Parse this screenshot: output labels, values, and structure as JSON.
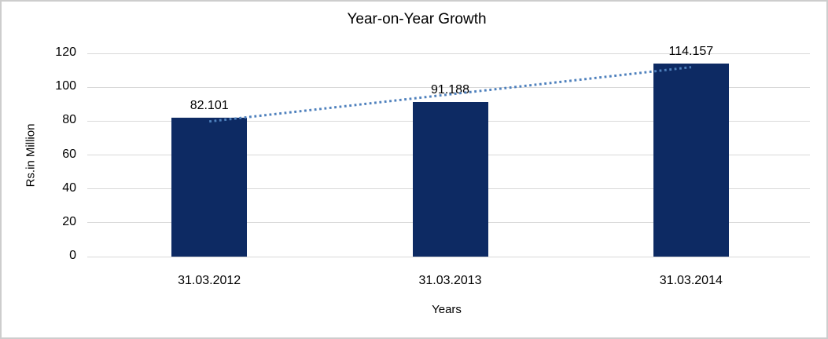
{
  "window": {
    "background": "#ffffff",
    "border_color": "#cdcdcd"
  },
  "chart_data": {
    "type": "bar",
    "title": "Year-on-Year Growth",
    "xlabel": "Years",
    "ylabel": "Rs.in Million",
    "categories": [
      "31.03.2012",
      "31.03.2013",
      "31.03.2014"
    ],
    "values": [
      82.101,
      91.188,
      114.157
    ],
    "data_labels": [
      "82.101",
      "91.188",
      "114.157"
    ],
    "ylim": [
      0,
      120
    ],
    "ytick_interval": 20,
    "ytick_labels": [
      "0",
      "20",
      "40",
      "60",
      "80",
      "100",
      "120"
    ],
    "grid": true,
    "legend_position": "none",
    "colors": {
      "bar": "#0d2a63",
      "trendline": "#4f81bd",
      "gridline": "#d9d9d9",
      "text": "#000000"
    },
    "trendline": {
      "type": "linear",
      "style": "dotted"
    }
  }
}
